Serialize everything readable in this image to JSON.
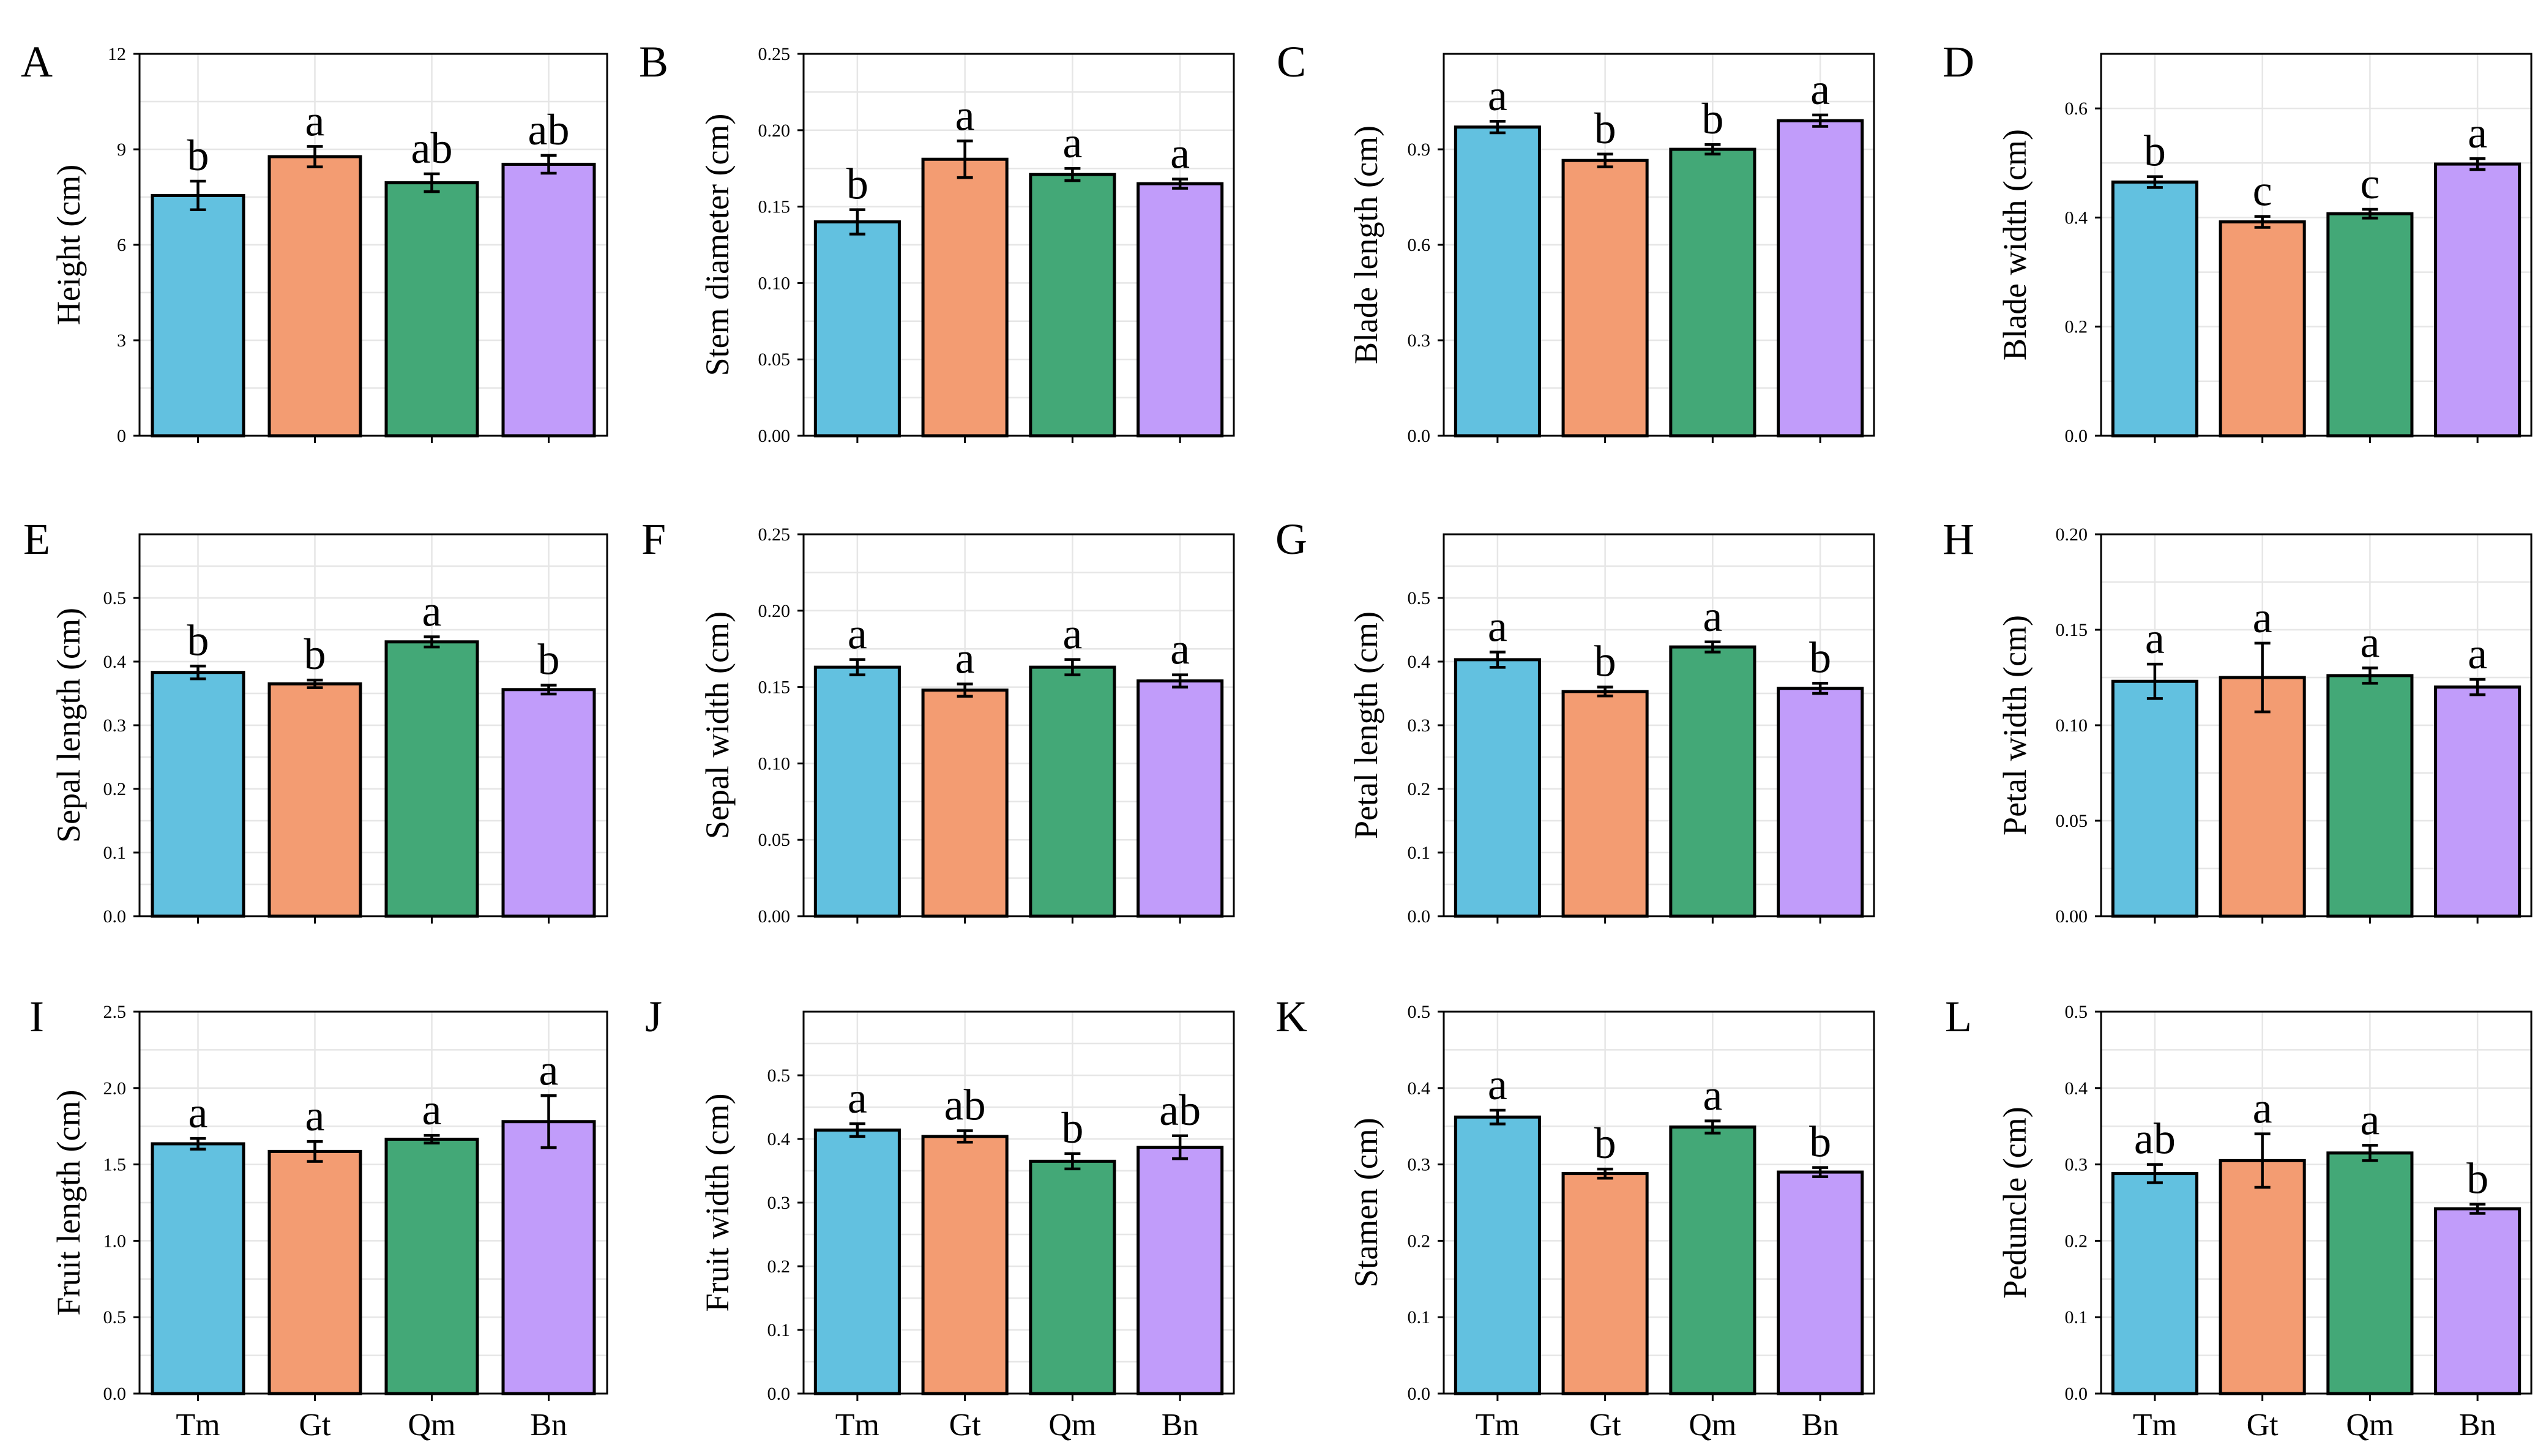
{
  "colors": {
    "Tm": "#62c1e0",
    "Gt": "#f39c72",
    "Qm": "#43a877",
    "Bn": "#c19cfa"
  },
  "chart_data": [
    {
      "type": "bar",
      "panel": "A",
      "ylabel": "Height (cm)",
      "ylim": [
        0,
        12
      ],
      "yticks": [
        0,
        3,
        6,
        9,
        12
      ],
      "tick_labels": [
        "0",
        "3",
        "6",
        "9",
        "12"
      ],
      "categories": [
        "Tm",
        "Gt",
        "Qm",
        "Bn"
      ],
      "show_category_labels": false,
      "values": [
        7.55,
        8.77,
        7.95,
        8.53
      ],
      "errors": [
        0.45,
        0.32,
        0.28,
        0.28
      ],
      "letters": [
        "b",
        "a",
        "ab",
        "ab"
      ]
    },
    {
      "type": "bar",
      "panel": "B",
      "ylabel": "Stem diameter (cm)",
      "ylim": [
        0,
        0.25
      ],
      "yticks": [
        0,
        0.05,
        0.1,
        0.15,
        0.2,
        0.25
      ],
      "tick_labels": [
        "0.00",
        "0.05",
        "0.10",
        "0.15",
        "0.20",
        "0.25"
      ],
      "categories": [
        "Tm",
        "Gt",
        "Qm",
        "Bn"
      ],
      "show_category_labels": false,
      "values": [
        0.14,
        0.181,
        0.171,
        0.165
      ],
      "errors": [
        0.008,
        0.012,
        0.004,
        0.003
      ],
      "letters": [
        "b",
        "a",
        "a",
        "a"
      ]
    },
    {
      "type": "bar",
      "panel": "C",
      "ylabel": "Blade length (cm)",
      "ylim": [
        0,
        1.2
      ],
      "yticks": [
        0,
        0.3,
        0.6,
        0.9
      ],
      "tick_labels": [
        "0.0",
        "0.3",
        "0.6",
        "0.9"
      ],
      "categories": [
        "Tm",
        "Gt",
        "Qm",
        "Bn"
      ],
      "show_category_labels": false,
      "values": [
        0.97,
        0.865,
        0.9,
        0.99
      ],
      "errors": [
        0.018,
        0.02,
        0.015,
        0.018
      ],
      "letters": [
        "a",
        "b",
        "b",
        "a"
      ]
    },
    {
      "type": "bar",
      "panel": "D",
      "ylabel": "Blade width (cm)",
      "ylim": [
        0,
        0.7
      ],
      "yticks": [
        0,
        0.2,
        0.4,
        0.6
      ],
      "tick_labels": [
        "0.0",
        "0.2",
        "0.4",
        "0.6"
      ],
      "categories": [
        "Tm",
        "Gt",
        "Qm",
        "Bn"
      ],
      "show_category_labels": false,
      "values": [
        0.465,
        0.392,
        0.407,
        0.498
      ],
      "errors": [
        0.01,
        0.01,
        0.008,
        0.01
      ],
      "letters": [
        "b",
        "c",
        "c",
        "a"
      ]
    },
    {
      "type": "bar",
      "panel": "E",
      "ylabel": "Sepal length (cm)",
      "ylim": [
        0,
        0.6
      ],
      "yticks": [
        0,
        0.1,
        0.2,
        0.3,
        0.4,
        0.5
      ],
      "tick_labels": [
        "0.0",
        "0.1",
        "0.2",
        "0.3",
        "0.4",
        "0.5"
      ],
      "categories": [
        "Tm",
        "Gt",
        "Qm",
        "Bn"
      ],
      "show_category_labels": false,
      "values": [
        0.383,
        0.365,
        0.431,
        0.356
      ],
      "errors": [
        0.01,
        0.006,
        0.008,
        0.007
      ],
      "letters": [
        "b",
        "b",
        "a",
        "b"
      ]
    },
    {
      "type": "bar",
      "panel": "F",
      "ylabel": "Sepal width (cm)",
      "ylim": [
        0,
        0.25
      ],
      "yticks": [
        0,
        0.05,
        0.1,
        0.15,
        0.2,
        0.25
      ],
      "tick_labels": [
        "0.00",
        "0.05",
        "0.10",
        "0.15",
        "0.20",
        "0.25"
      ],
      "categories": [
        "Tm",
        "Gt",
        "Qm",
        "Bn"
      ],
      "show_category_labels": false,
      "values": [
        0.163,
        0.148,
        0.163,
        0.154
      ],
      "errors": [
        0.005,
        0.004,
        0.005,
        0.004
      ],
      "letters": [
        "a",
        "a",
        "a",
        "a"
      ]
    },
    {
      "type": "bar",
      "panel": "G",
      "ylabel": "Petal length (cm)",
      "ylim": [
        0,
        0.6
      ],
      "yticks": [
        0,
        0.1,
        0.2,
        0.3,
        0.4,
        0.5
      ],
      "tick_labels": [
        "0.0",
        "0.1",
        "0.2",
        "0.3",
        "0.4",
        "0.5"
      ],
      "categories": [
        "Tm",
        "Gt",
        "Qm",
        "Bn"
      ],
      "show_category_labels": false,
      "values": [
        0.403,
        0.353,
        0.423,
        0.358
      ],
      "errors": [
        0.012,
        0.007,
        0.008,
        0.008
      ],
      "letters": [
        "a",
        "b",
        "a",
        "b"
      ]
    },
    {
      "type": "bar",
      "panel": "H",
      "ylabel": "Petal width (cm)",
      "ylim": [
        0,
        0.2
      ],
      "yticks": [
        0,
        0.05,
        0.1,
        0.15,
        0.2
      ],
      "tick_labels": [
        "0.00",
        "0.05",
        "0.10",
        "0.15",
        "0.20"
      ],
      "categories": [
        "Tm",
        "Gt",
        "Qm",
        "Bn"
      ],
      "show_category_labels": false,
      "values": [
        0.123,
        0.125,
        0.126,
        0.12
      ],
      "errors": [
        0.009,
        0.018,
        0.004,
        0.004
      ],
      "letters": [
        "a",
        "a",
        "a",
        "a"
      ]
    },
    {
      "type": "bar",
      "panel": "I",
      "ylabel": "Fruit length (cm)",
      "ylim": [
        0,
        2.5
      ],
      "yticks": [
        0,
        0.5,
        1,
        1.5,
        2,
        2.5
      ],
      "tick_labels": [
        "0.0",
        "0.5",
        "1.0",
        "1.5",
        "2.0",
        "2.5"
      ],
      "categories": [
        "Tm",
        "Gt",
        "Qm",
        "Bn"
      ],
      "show_category_labels": true,
      "values": [
        1.635,
        1.585,
        1.665,
        1.78
      ],
      "errors": [
        0.035,
        0.065,
        0.025,
        0.17
      ],
      "letters": [
        "a",
        "a",
        "a",
        "a"
      ]
    },
    {
      "type": "bar",
      "panel": "J",
      "ylabel": "Fruit width (cm)",
      "ylim": [
        0,
        0.6
      ],
      "yticks": [
        0,
        0.1,
        0.2,
        0.3,
        0.4,
        0.5
      ],
      "tick_labels": [
        "0.0",
        "0.1",
        "0.2",
        "0.3",
        "0.4",
        "0.5"
      ],
      "categories": [
        "Tm",
        "Gt",
        "Qm",
        "Bn"
      ],
      "show_category_labels": true,
      "values": [
        0.414,
        0.404,
        0.365,
        0.387
      ],
      "errors": [
        0.01,
        0.009,
        0.012,
        0.018
      ],
      "letters": [
        "a",
        "ab",
        "b",
        "ab"
      ]
    },
    {
      "type": "bar",
      "panel": "K",
      "ylabel": "Stamen (cm)",
      "ylim": [
        0,
        0.5
      ],
      "yticks": [
        0,
        0.1,
        0.2,
        0.3,
        0.4,
        0.5
      ],
      "tick_labels": [
        "0.0",
        "0.1",
        "0.2",
        "0.3",
        "0.4",
        "0.5"
      ],
      "categories": [
        "Tm",
        "Gt",
        "Qm",
        "Bn"
      ],
      "show_category_labels": true,
      "values": [
        0.362,
        0.288,
        0.349,
        0.29
      ],
      "errors": [
        0.009,
        0.006,
        0.008,
        0.006
      ],
      "letters": [
        "a",
        "b",
        "a",
        "b"
      ]
    },
    {
      "type": "bar",
      "panel": "L",
      "ylabel": "Peduncle (cm)",
      "ylim": [
        0,
        0.5
      ],
      "yticks": [
        0,
        0.1,
        0.2,
        0.3,
        0.4,
        0.5
      ],
      "tick_labels": [
        "0.0",
        "0.1",
        "0.2",
        "0.3",
        "0.4",
        "0.5"
      ],
      "categories": [
        "Tm",
        "Gt",
        "Qm",
        "Bn"
      ],
      "show_category_labels": true,
      "values": [
        0.288,
        0.305,
        0.315,
        0.242
      ],
      "errors": [
        0.012,
        0.035,
        0.01,
        0.006
      ],
      "letters": [
        "ab",
        "a",
        "a",
        "b"
      ]
    }
  ]
}
